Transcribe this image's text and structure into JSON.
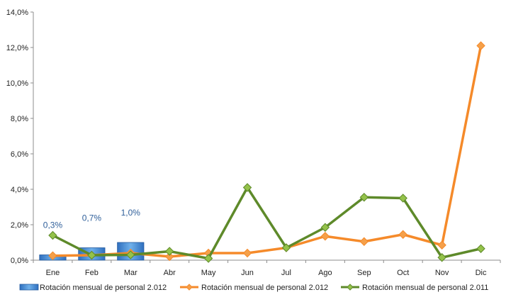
{
  "chart_data": {
    "type": "bar",
    "categories": [
      "Ene",
      "Feb",
      "Mar",
      "Abr",
      "May",
      "Jun",
      "Jul",
      "Ago",
      "Sep",
      "Oct",
      "Nov",
      "Dic"
    ],
    "ylim": [
      0,
      14
    ],
    "yticks": [
      "0,0%",
      "2,0%",
      "4,0%",
      "6,0%",
      "8,0%",
      "10,0%",
      "12,0%",
      "14,0%"
    ],
    "grid": false,
    "legend_position": "bottom",
    "series": [
      {
        "name": "Rotación mensual  de personal 2.012",
        "type": "bar",
        "color": "#4f93d6",
        "values": [
          0.3,
          0.7,
          1.0,
          null,
          null,
          null,
          null,
          null,
          null,
          null,
          null,
          null
        ],
        "labels": [
          "0,3%",
          "0,7%",
          "1,0%",
          null,
          null,
          null,
          null,
          null,
          null,
          null,
          null,
          null
        ],
        "label_color": "#2f5f9a"
      },
      {
        "name": "Rotación mensual  de personal 2.012",
        "type": "line",
        "color": "#f58a2a",
        "marker_color": "#f5a04a",
        "values": [
          0.25,
          0.28,
          0.4,
          0.2,
          0.4,
          0.4,
          0.7,
          1.35,
          1.05,
          1.45,
          0.85,
          12.1
        ]
      },
      {
        "name": "Rotación mensual  de personal 2.011",
        "type": "line",
        "color": "#5e8a2a",
        "marker_color": "#94c24a",
        "values": [
          1.4,
          0.28,
          0.3,
          0.5,
          0.1,
          4.1,
          0.7,
          1.85,
          3.55,
          3.5,
          0.15,
          0.65
        ]
      }
    ]
  }
}
